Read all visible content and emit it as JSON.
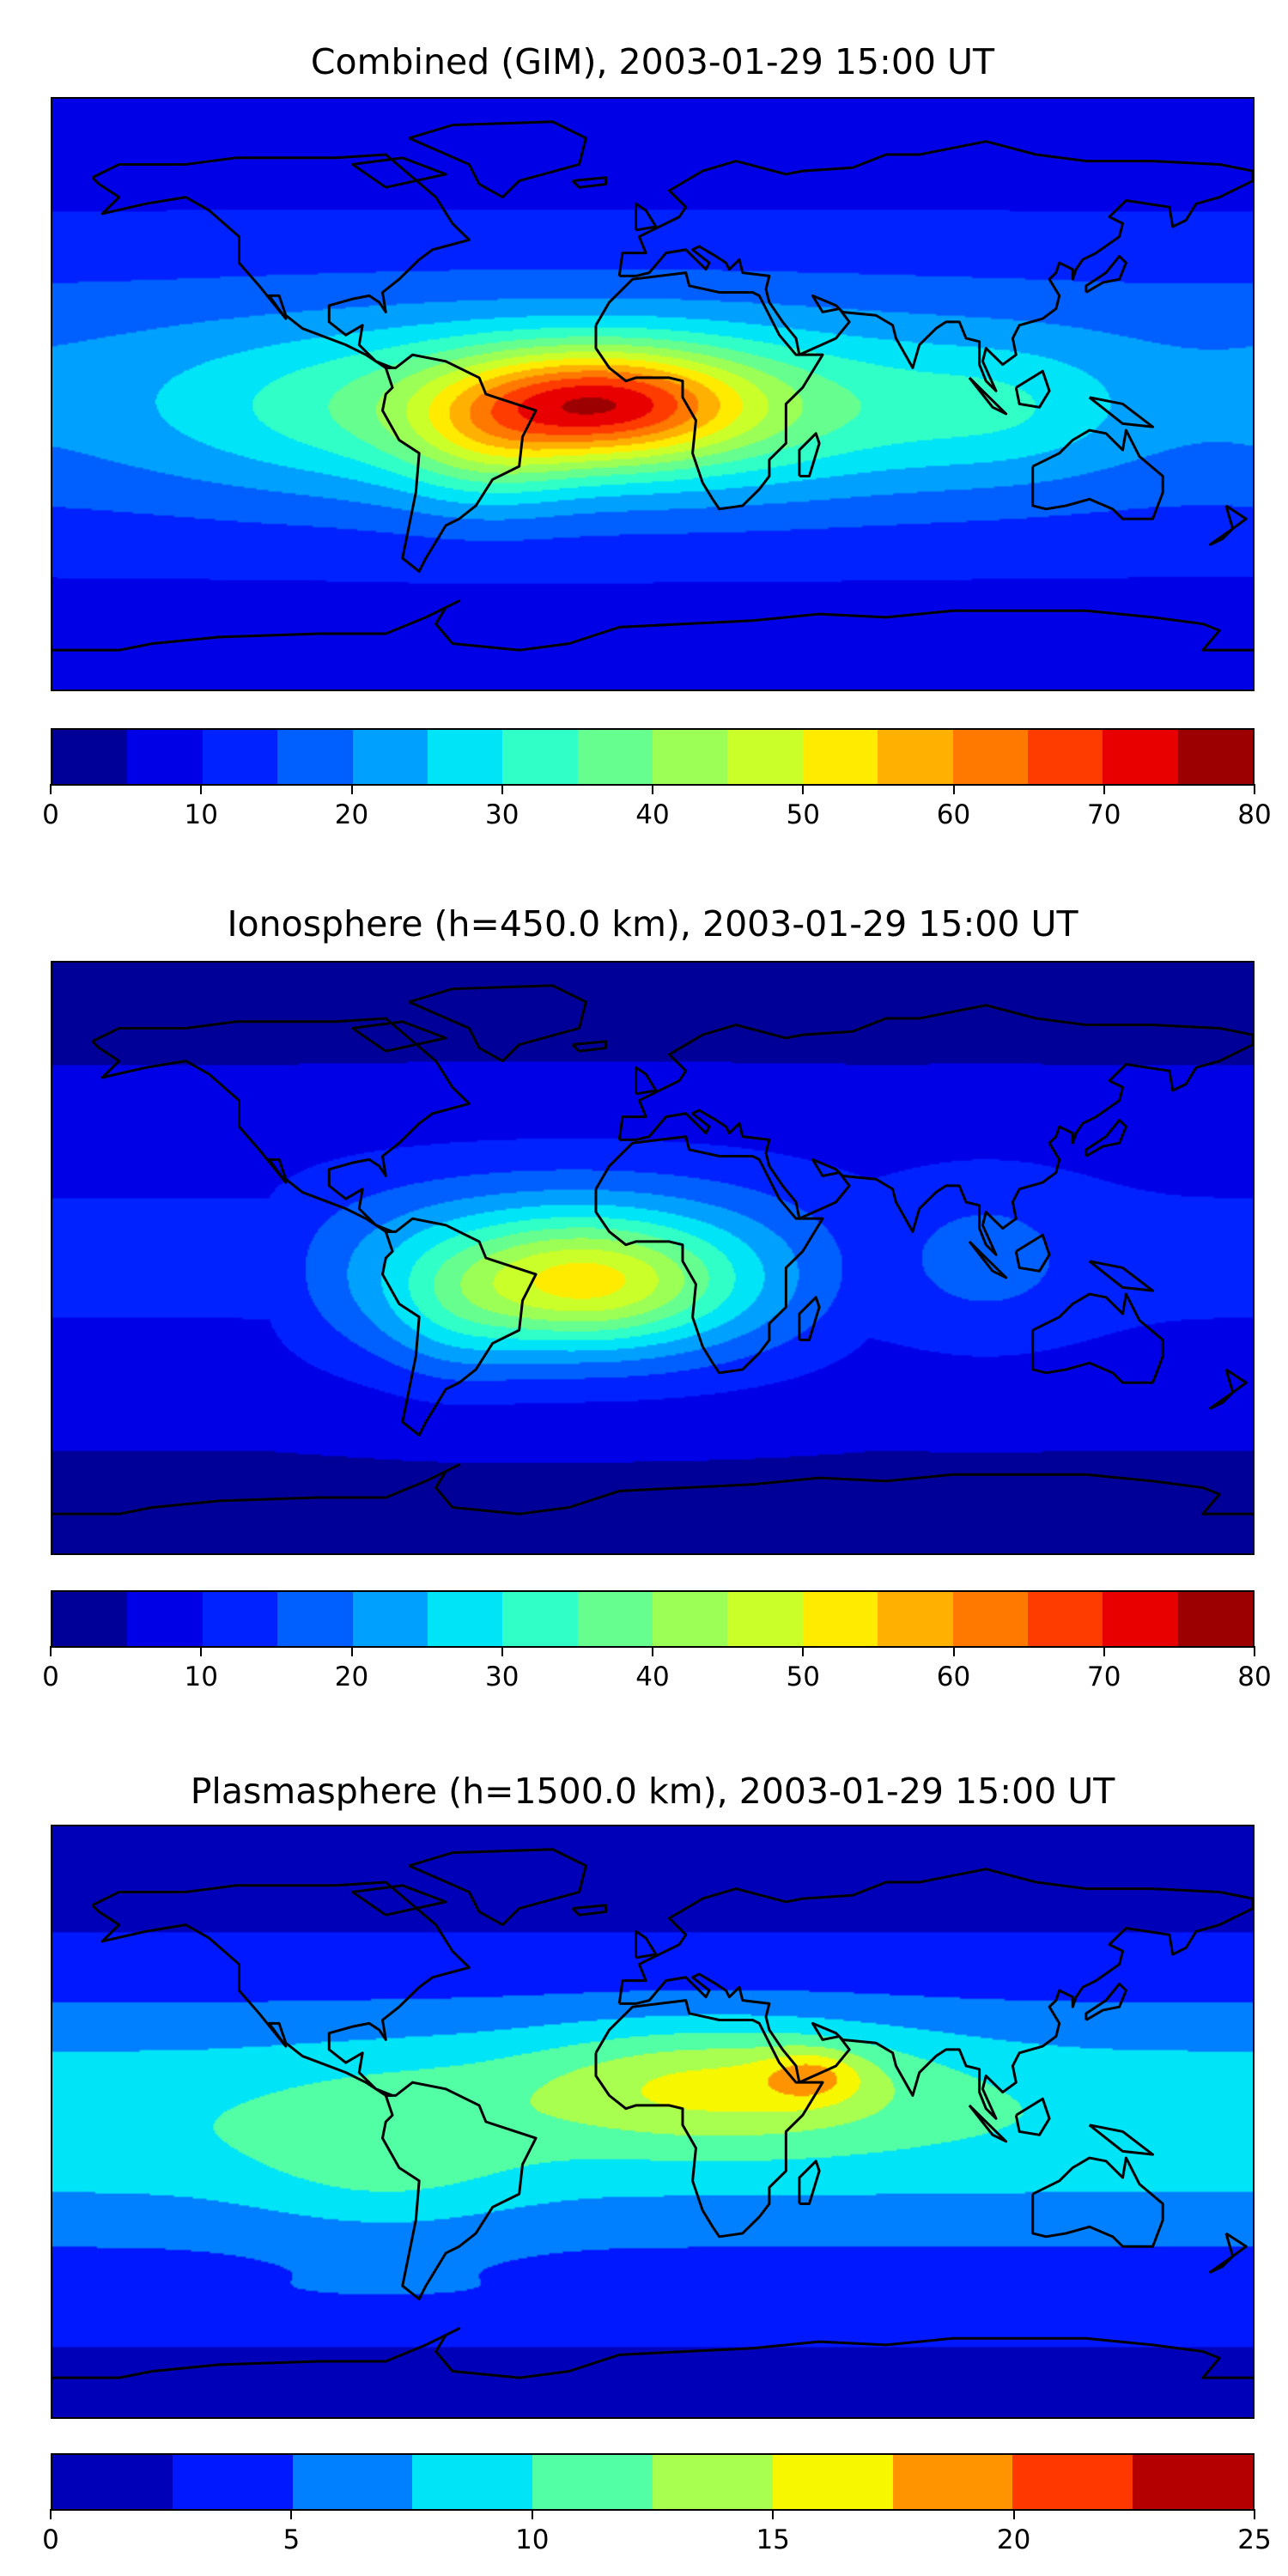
{
  "chart_data": [
    {
      "type": "heatmap",
      "title": "Combined (GIM), 2003-01-29 15:00 UT",
      "xlabel": "",
      "ylabel": "",
      "xlim": [
        -180,
        180
      ],
      "ylim": [
        -90,
        90
      ],
      "grid": false,
      "colorbar": {
        "ticks": [
          "0",
          "10",
          "20",
          "30",
          "40",
          "50",
          "60",
          "70",
          "80"
        ],
        "range": [
          0,
          80
        ],
        "levels": [
          0,
          5,
          10,
          15,
          20,
          25,
          30,
          35,
          40,
          45,
          50,
          55,
          60,
          65,
          70,
          75,
          80
        ],
        "colors": [
          "#000099",
          "#0000e6",
          "#0022ff",
          "#0060ff",
          "#00a0ff",
          "#00e4f8",
          "#30ffc7",
          "#66ff8f",
          "#9cff55",
          "#cbff2a",
          "#ffeb00",
          "#ffb000",
          "#ff7800",
          "#ff3c00",
          "#e80000",
          "#9c0000"
        ]
      },
      "features": {
        "peak_value_approx": 75,
        "peak_location_lonlat": [
          -15,
          -3
        ]
      }
    },
    {
      "type": "heatmap",
      "title": "Ionosphere  (h=450.0 km), 2003-01-29 15:00 UT",
      "xlabel": "",
      "ylabel": "",
      "xlim": [
        -180,
        180
      ],
      "ylim": [
        -90,
        90
      ],
      "grid": false,
      "colorbar": {
        "ticks": [
          "0",
          "10",
          "20",
          "30",
          "40",
          "50",
          "60",
          "70",
          "80"
        ],
        "range": [
          0,
          80
        ],
        "levels": [
          0,
          5,
          10,
          15,
          20,
          25,
          30,
          35,
          40,
          45,
          50,
          55,
          60,
          65,
          70,
          75,
          80
        ],
        "colors": [
          "#000099",
          "#0000e6",
          "#0022ff",
          "#0060ff",
          "#00a0ff",
          "#00e4f8",
          "#30ffc7",
          "#66ff8f",
          "#9cff55",
          "#cbff2a",
          "#ffeb00",
          "#ffb000",
          "#ff7800",
          "#ff3c00",
          "#e80000",
          "#9c0000"
        ]
      },
      "features": {
        "peak_value_approx": 57,
        "peak_location_lonlat": [
          -20,
          -8
        ]
      }
    },
    {
      "type": "heatmap",
      "title": "Plasmasphere (h=1500.0 km), 2003-01-29 15:00 UT",
      "xlabel": "",
      "ylabel": "",
      "xlim": [
        -180,
        180
      ],
      "ylim": [
        -90,
        90
      ],
      "grid": false,
      "colorbar": {
        "ticks": [
          "0",
          "5",
          "10",
          "15",
          "20",
          "25"
        ],
        "range": [
          0,
          25
        ],
        "levels": [
          0,
          2.5,
          5,
          7.5,
          10,
          12.5,
          15,
          17.5,
          20,
          22.5,
          25
        ],
        "colors": [
          "#0000b8",
          "#0018ff",
          "#0080ff",
          "#00e4f8",
          "#52ffa4",
          "#a8ff50",
          "#f7f700",
          "#ff9400",
          "#ff3800",
          "#b40000"
        ]
      },
      "features": {
        "peak_value_approx": 21,
        "peak_location_lonlat": [
          48,
          14
        ]
      }
    }
  ]
}
